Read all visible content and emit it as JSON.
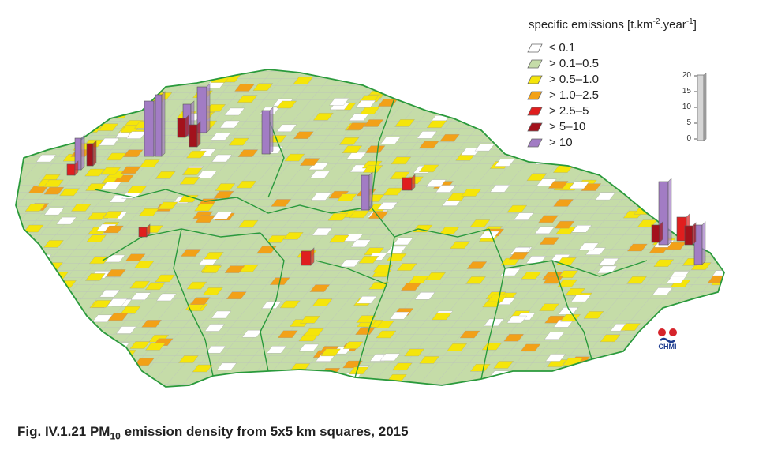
{
  "legend": {
    "title": "specific emissions [t.km",
    "title_sup1": "-2",
    "title_mid": ".year",
    "title_sup2": "-1",
    "title_end": "]",
    "items": [
      {
        "label": "≤ 0.1",
        "color": "#ffffff"
      },
      {
        "label": "> 0.1–0.5",
        "color": "#c5dca8"
      },
      {
        "label": "> 0.5–1.0",
        "color": "#f5e50a"
      },
      {
        "label": "> 1.0–2.5",
        "color": "#f2a118"
      },
      {
        "label": "> 2.5–5",
        "color": "#e01e1e"
      },
      {
        "label": "> 5–10",
        "color": "#a3121c"
      },
      {
        "label": "> 10",
        "color": "#a27cc4"
      }
    ]
  },
  "scale": {
    "ticks": [
      "20",
      "15",
      "10",
      "5",
      "0"
    ]
  },
  "logo": {
    "text": "CHMI"
  },
  "caption": {
    "prefix": "Fig. IV.1.21  PM",
    "sub": "10",
    "suffix": " emission density from 5x5 km squares, 2015"
  },
  "colors": {
    "border": "#2a9a3c",
    "grid": "#b9b9c4"
  }
}
